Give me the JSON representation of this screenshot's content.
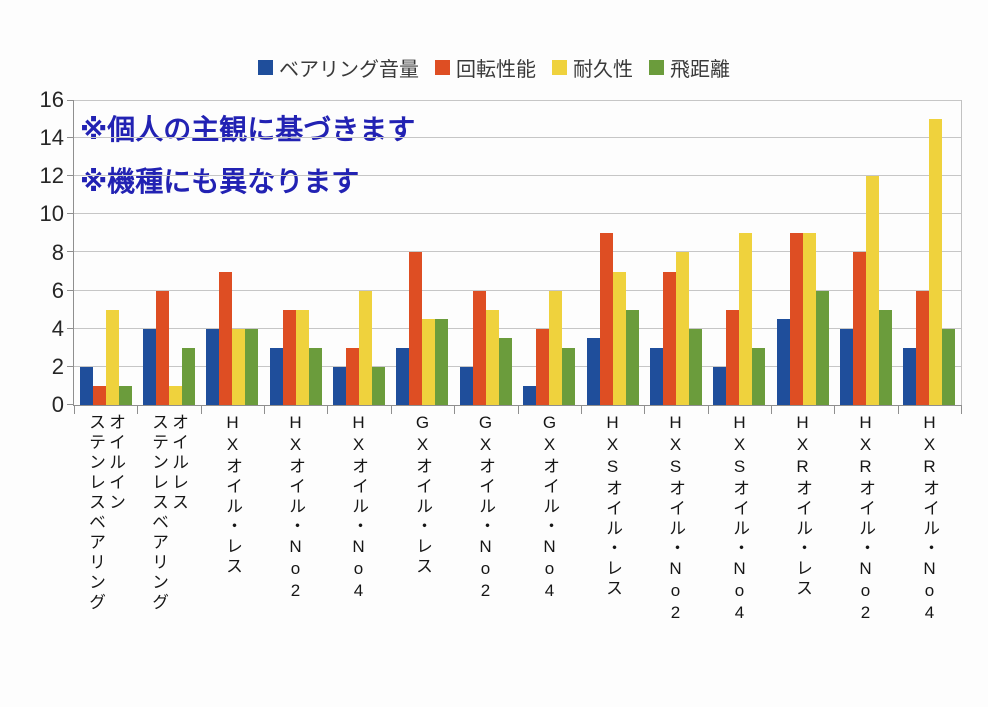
{
  "chart_data": {
    "type": "bar",
    "legend_position": "top",
    "grid": true,
    "ylim": [
      0,
      16
    ],
    "yticks": [
      0,
      2,
      4,
      6,
      8,
      10,
      12,
      14,
      16
    ],
    "annotations": [
      "※個人の主観に基づきます",
      "※機種にも異なります"
    ],
    "annotation_color": "#2222b3",
    "axis_color": "#8f8f8f",
    "gridline_color": "#c6c6c6",
    "categories": [
      {
        "label": "オイルインステンレスベアリング",
        "lines": [
          "オイルイン",
          "ステンレスベアリング"
        ]
      },
      {
        "label": "オイルレスステンレスベアリング",
        "lines": [
          "オイルレス",
          "ステンレスベアリング"
        ]
      },
      {
        "label": "HXオイル・レス",
        "lines": [
          "HXオイル・レス"
        ]
      },
      {
        "label": "HXオイル・No2",
        "lines": [
          "HXオイル・No2"
        ]
      },
      {
        "label": "HXオイル・No4",
        "lines": [
          "HXオイル・No4"
        ]
      },
      {
        "label": "GXオイル・レス",
        "lines": [
          "GXオイル・レス"
        ]
      },
      {
        "label": "GXオイル・No2",
        "lines": [
          "GXオイル・No2"
        ]
      },
      {
        "label": "GXオイル・No4",
        "lines": [
          "GXオイル・No4"
        ]
      },
      {
        "label": "HXSオイル・レス",
        "lines": [
          "HXSオイル・レス"
        ]
      },
      {
        "label": "HXSオイル・No2",
        "lines": [
          "HXSオイル・No2"
        ]
      },
      {
        "label": "HXSオイル・No4",
        "lines": [
          "HXSオイル・No4"
        ]
      },
      {
        "label": "HXRオイル・レス",
        "lines": [
          "HXRオイル・レス"
        ]
      },
      {
        "label": "HXRオイル・No2",
        "lines": [
          "HXRオイル・No2"
        ]
      },
      {
        "label": "HXRオイル・No4",
        "lines": [
          "HXRオイル・No4"
        ]
      }
    ],
    "series": [
      {
        "name": "ベアリング音量",
        "color": "#1f4e9b",
        "values": [
          2,
          4,
          4,
          3,
          2,
          3,
          2,
          1,
          3.5,
          3,
          2,
          4.5,
          4,
          3
        ]
      },
      {
        "name": "回転性能",
        "color": "#de4e23",
        "values": [
          1,
          6,
          7,
          5,
          3,
          8,
          6,
          4,
          9,
          7,
          5,
          9,
          8,
          6
        ]
      },
      {
        "name": "耐久性",
        "color": "#efd23d",
        "values": [
          5,
          1,
          4,
          5,
          6,
          4.5,
          5,
          6,
          7,
          8,
          9,
          9,
          12,
          15
        ]
      },
      {
        "name": "飛距離",
        "color": "#6b9c3c",
        "values": [
          1,
          3,
          4,
          3,
          2,
          4.5,
          3.5,
          3,
          5,
          4,
          3,
          6,
          5,
          4
        ]
      }
    ]
  }
}
